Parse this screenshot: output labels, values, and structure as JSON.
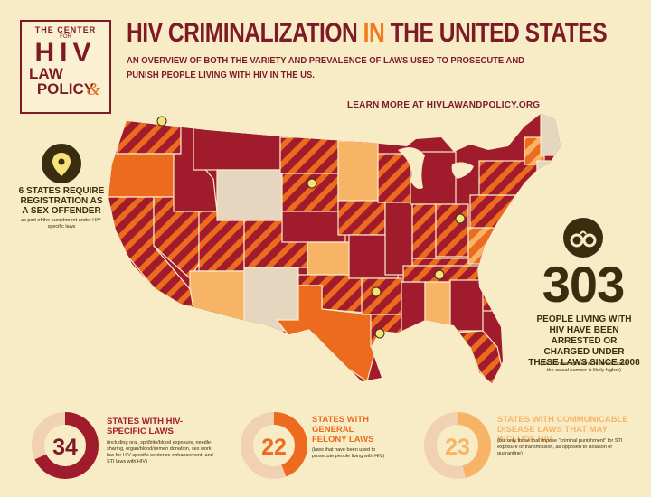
{
  "logo": {
    "line1": "THE CENTER",
    "line2": "FOR",
    "line3": "HIV",
    "line4": "LAW",
    "amp": "&",
    "line5": "POLICY"
  },
  "title": {
    "part1": "HIV CRIMINALIZATION",
    "part2": "IN",
    "part3": "THE UNITED STATES"
  },
  "subtitle": "AN OVERVIEW OF BOTH THE VARIETY AND PREVALENCE OF LAWS USED TO PROSECUTE AND PUNISH PEOPLE LIVING WITH HIV IN THE US.",
  "learn_more": "LEARN MORE AT HIVLAWANDPOLICY.ORG",
  "sex_offender": {
    "icon": "map-pin-icon",
    "headline": "6 STATES REQUIRE REGISTRATION AS A SEX OFFENDER",
    "note": "as part of the punishment under HIV-specific laws"
  },
  "arrests": {
    "icon": "handcuffs-icon",
    "number": "303",
    "text": "PEOPLE LIVING WITH HIV HAVE BEEN ARRESTED OR CHARGED UNDER THESE LAWS SINCE 2008",
    "note": "(this number represents reported cases, the actual number is likely higher)"
  },
  "stats": [
    {
      "value": "34",
      "fraction": 0.68,
      "color": "#a01c2c",
      "label": "STATES WITH HIV-SPECIFIC LAWS",
      "desc": "(including oral, spit/bite/blood exposure, needle-sharing, organ/blood/semen donation, sex work, law for HIV-specific sentence enhancement, and STI laws with HIV)"
    },
    {
      "value": "22",
      "fraction": 0.44,
      "color": "#ec6b1e",
      "label": "STATES WITH GENERAL FELONY LAWS",
      "desc": "(laws that have been used to prosecute people living with HIV)"
    },
    {
      "value": "23",
      "fraction": 0.46,
      "color": "#f7b466",
      "label": "STATES WITH COMMUNICABLE DISEASE LAWS THAT MAY INCLUDE HIV",
      "desc": "(but only those that impose \"criminal punishment\" for STI exposure or transmission, as opposed to isolation or quarantine)"
    }
  ],
  "colors": {
    "maroon": "#7d1a26",
    "crimson": "#a01c2c",
    "orange": "#ec6b1e",
    "light_orange": "#f7b466",
    "beige": "#e7d6bf",
    "dark": "#3a2d0f"
  }
}
